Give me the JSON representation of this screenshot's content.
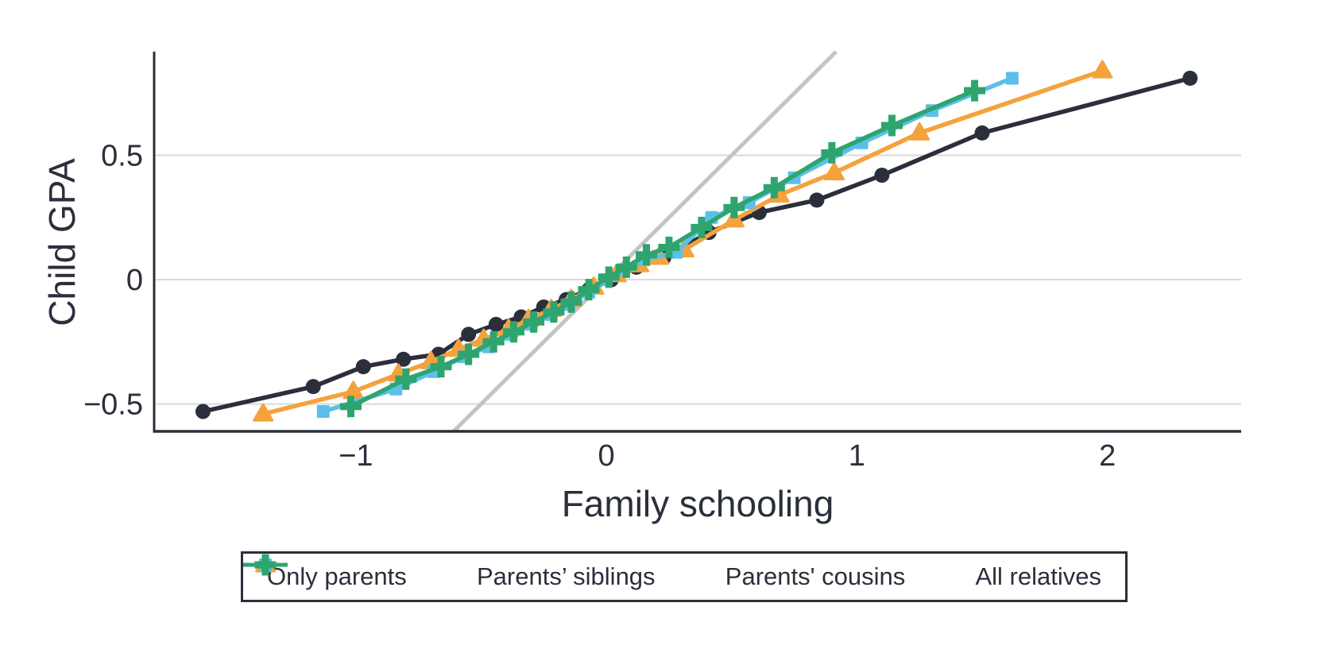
{
  "figure": {
    "background": "#ffffff",
    "text_color": "#2b2f3b",
    "grid_color": "#dadada",
    "axis_color": "#2b2f3b"
  },
  "chart_data": {
    "type": "line",
    "title": "",
    "xlabel": "Family schooling",
    "ylabel": "Child GPA",
    "xlim": [
      -1.805,
      2.534
    ],
    "ylim": [
      -0.61,
      0.917
    ],
    "x_ticks": {
      "values": [
        -1,
        0,
        1,
        2
      ],
      "labels": [
        "−1",
        "0",
        "1",
        "2"
      ]
    },
    "y_ticks": {
      "values": [
        -0.5,
        0,
        0.5
      ],
      "labels": [
        "−0.5",
        "0",
        "0.5"
      ]
    },
    "grid": "horizontal",
    "legend_position": "bottom",
    "reference_line": {
      "type": "identity-45-degree",
      "from": -0.61,
      "to": 0.917,
      "color": "#c4c4c4"
    },
    "series": [
      {
        "name": "Only parents",
        "marker": "circle",
        "color": "#2b2f3b",
        "points": [
          [
            -1.61,
            -0.53
          ],
          [
            -1.17,
            -0.43
          ],
          [
            -0.97,
            -0.35
          ],
          [
            -0.81,
            -0.32
          ],
          [
            -0.67,
            -0.3
          ],
          [
            -0.55,
            -0.22
          ],
          [
            -0.44,
            -0.18
          ],
          [
            -0.34,
            -0.15
          ],
          [
            -0.25,
            -0.11
          ],
          [
            -0.16,
            -0.08
          ],
          [
            -0.07,
            -0.04
          ],
          [
            0.02,
            0.0
          ],
          [
            0.12,
            0.05
          ],
          [
            0.23,
            0.09
          ],
          [
            0.41,
            0.19
          ],
          [
            0.61,
            0.27
          ],
          [
            0.84,
            0.32
          ],
          [
            1.1,
            0.42
          ],
          [
            1.5,
            0.59
          ],
          [
            2.33,
            0.81
          ]
        ]
      },
      {
        "name": "Parents’ siblings",
        "marker": "triangle",
        "color": "#f5a23c",
        "points": [
          [
            -1.37,
            -0.54
          ],
          [
            -1.01,
            -0.45
          ],
          [
            -0.83,
            -0.38
          ],
          [
            -0.7,
            -0.33
          ],
          [
            -0.59,
            -0.28
          ],
          [
            -0.49,
            -0.24
          ],
          [
            -0.39,
            -0.2
          ],
          [
            -0.31,
            -0.16
          ],
          [
            -0.22,
            -0.12
          ],
          [
            -0.14,
            -0.08
          ],
          [
            -0.05,
            -0.03
          ],
          [
            0.04,
            0.02
          ],
          [
            0.13,
            0.06
          ],
          [
            0.21,
            0.09
          ],
          [
            0.31,
            0.12
          ],
          [
            0.51,
            0.24
          ],
          [
            0.69,
            0.34
          ],
          [
            0.91,
            0.43
          ],
          [
            1.25,
            0.59
          ],
          [
            1.98,
            0.84
          ]
        ]
      },
      {
        "name": "Parents' cousins",
        "marker": "square",
        "color": "#5bc0e8",
        "points": [
          [
            -1.13,
            -0.53
          ],
          [
            -0.84,
            -0.44
          ],
          [
            -0.69,
            -0.37
          ],
          [
            -0.57,
            -0.31
          ],
          [
            -0.47,
            -0.27
          ],
          [
            -0.38,
            -0.22
          ],
          [
            -0.3,
            -0.18
          ],
          [
            -0.22,
            -0.14
          ],
          [
            -0.15,
            -0.1
          ],
          [
            -0.07,
            -0.05
          ],
          [
            0.0,
            0.0
          ],
          [
            0.07,
            0.04
          ],
          [
            0.15,
            0.08
          ],
          [
            0.28,
            0.11
          ],
          [
            0.42,
            0.25
          ],
          [
            0.57,
            0.31
          ],
          [
            0.75,
            0.41
          ],
          [
            1.02,
            0.55
          ],
          [
            1.3,
            0.68
          ],
          [
            1.62,
            0.81
          ]
        ]
      },
      {
        "name": "All relatives",
        "marker": "plus",
        "color": "#2ea46f",
        "points": [
          [
            -1.02,
            -0.51
          ],
          [
            -0.8,
            -0.4
          ],
          [
            -0.66,
            -0.35
          ],
          [
            -0.55,
            -0.3
          ],
          [
            -0.45,
            -0.25
          ],
          [
            -0.37,
            -0.21
          ],
          [
            -0.29,
            -0.17
          ],
          [
            -0.21,
            -0.13
          ],
          [
            -0.14,
            -0.09
          ],
          [
            -0.07,
            -0.04
          ],
          [
            0.01,
            0.01
          ],
          [
            0.08,
            0.05
          ],
          [
            0.16,
            0.1
          ],
          [
            0.25,
            0.13
          ],
          [
            0.38,
            0.21
          ],
          [
            0.51,
            0.29
          ],
          [
            0.67,
            0.37
          ],
          [
            0.9,
            0.51
          ],
          [
            1.14,
            0.62
          ],
          [
            1.47,
            0.76
          ]
        ]
      }
    ]
  }
}
